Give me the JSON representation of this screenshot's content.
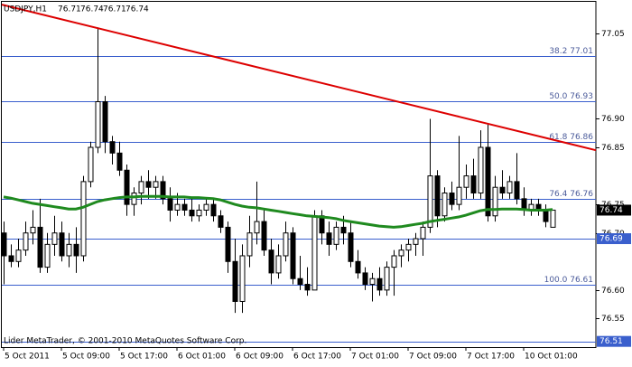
{
  "chart_data": {
    "type": "candlestick",
    "title": "USDJPY,H1",
    "footer": "Lider MetaTrader, © 2001-2010 MetaQuotes Software Corp.",
    "categories": [
      "5 Oct 2011",
      null,
      null,
      null,
      null,
      null,
      null,
      null,
      "5 Oct 09:00",
      null,
      null,
      null,
      null,
      null,
      null,
      null,
      "5 Oct 17:00",
      null,
      null,
      null,
      null,
      null,
      null,
      null,
      "6 Oct 01:00",
      null,
      null,
      null,
      null,
      null,
      null,
      null,
      "6 Oct 09:00",
      null,
      null,
      null,
      null,
      null,
      null,
      null,
      "6 Oct 17:00",
      null,
      null,
      null,
      null,
      null,
      null,
      null,
      "7 Oct 01:00",
      null,
      null,
      null,
      null,
      null,
      null,
      null,
      "7 Oct 09:00",
      null,
      null,
      null,
      null,
      null,
      null,
      null,
      "7 Oct 17:00",
      null,
      null,
      null,
      null,
      null,
      null,
      null,
      "10 Oct 01:00",
      null,
      null,
      null,
      null
    ],
    "open": [
      76.7,
      76.66,
      76.65,
      76.67,
      76.7,
      76.71,
      76.64,
      76.68,
      76.7,
      76.66,
      76.68,
      76.66,
      76.79,
      76.85,
      76.93,
      76.86,
      76.84,
      76.81,
      76.75,
      76.77,
      76.79,
      76.78,
      76.79,
      76.76,
      76.74,
      76.75,
      76.74,
      76.73,
      76.74,
      76.75,
      76.73,
      76.71,
      76.65,
      76.58,
      76.66,
      76.7,
      76.72,
      76.67,
      76.63,
      76.66,
      76.7,
      76.62,
      76.61,
      76.6,
      76.73,
      76.7,
      76.68,
      76.71,
      76.7,
      76.65,
      76.63,
      76.61,
      76.62,
      76.6,
      76.64,
      76.66,
      76.67,
      76.68,
      76.69,
      76.71,
      76.8,
      76.73,
      76.77,
      76.75,
      76.78,
      76.8,
      76.77,
      76.85,
      76.73,
      76.78,
      76.77,
      76.79,
      76.76,
      76.74,
      76.75,
      76.74,
      76.71
    ],
    "high": [
      76.72,
      76.68,
      76.69,
      76.72,
      76.74,
      76.76,
      76.7,
      76.73,
      76.72,
      76.7,
      76.71,
      76.8,
      76.86,
      77.06,
      76.94,
      76.87,
      76.86,
      76.82,
      76.78,
      76.8,
      76.81,
      76.8,
      76.8,
      76.78,
      76.77,
      76.76,
      76.76,
      76.75,
      76.76,
      76.76,
      76.74,
      76.72,
      76.69,
      76.68,
      76.73,
      76.79,
      76.74,
      76.69,
      76.68,
      76.72,
      76.71,
      76.66,
      76.64,
      76.74,
      76.74,
      76.72,
      76.72,
      76.73,
      76.72,
      76.67,
      76.64,
      76.63,
      76.64,
      76.65,
      76.67,
      76.68,
      76.69,
      76.7,
      76.72,
      76.9,
      76.81,
      76.78,
      76.79,
      76.87,
      76.82,
      76.83,
      76.88,
      76.89,
      76.8,
      76.81,
      76.8,
      76.84,
      76.78,
      76.76,
      76.76,
      76.75,
      76.74
    ],
    "low": [
      76.61,
      76.64,
      76.64,
      76.66,
      76.68,
      76.63,
      76.63,
      76.66,
      76.65,
      76.64,
      76.63,
      76.65,
      76.78,
      76.84,
      76.84,
      76.82,
      76.8,
      76.73,
      76.73,
      76.75,
      76.76,
      76.76,
      76.75,
      76.72,
      76.73,
      76.73,
      76.72,
      76.72,
      76.73,
      76.72,
      76.7,
      76.63,
      76.56,
      76.56,
      76.64,
      76.68,
      76.66,
      76.61,
      76.62,
      76.65,
      76.61,
      76.6,
      76.59,
      76.6,
      76.68,
      76.66,
      76.67,
      76.68,
      76.64,
      76.62,
      76.6,
      76.58,
      76.59,
      76.59,
      76.59,
      76.64,
      76.65,
      76.66,
      76.66,
      76.7,
      76.71,
      76.72,
      76.74,
      76.74,
      76.76,
      76.76,
      76.76,
      76.72,
      76.72,
      76.76,
      76.76,
      76.75,
      76.73,
      76.73,
      76.73,
      76.71,
      76.71
    ],
    "close": [
      76.66,
      76.65,
      76.67,
      76.7,
      76.71,
      76.64,
      76.68,
      76.7,
      76.66,
      76.68,
      76.66,
      76.79,
      76.85,
      76.93,
      76.86,
      76.84,
      76.81,
      76.75,
      76.77,
      76.79,
      76.78,
      76.79,
      76.76,
      76.74,
      76.75,
      76.74,
      76.73,
      76.74,
      76.75,
      76.73,
      76.71,
      76.65,
      76.58,
      76.66,
      76.7,
      76.72,
      76.67,
      76.63,
      76.66,
      76.7,
      76.62,
      76.61,
      76.6,
      76.73,
      76.7,
      76.68,
      76.71,
      76.7,
      76.65,
      76.63,
      76.61,
      76.62,
      76.6,
      76.64,
      76.66,
      76.67,
      76.68,
      76.69,
      76.71,
      76.8,
      76.73,
      76.77,
      76.75,
      76.78,
      76.8,
      76.77,
      76.85,
      76.73,
      76.78,
      76.77,
      76.79,
      76.76,
      76.74,
      76.75,
      76.74,
      76.72,
      76.74
    ],
    "up_color": "#ffffff",
    "down_color": "#000000",
    "wick_color": "#000000",
    "ma": {
      "color": "#1f8a1f",
      "values": [
        76.763,
        76.761,
        76.758,
        76.755,
        76.752,
        76.75,
        76.748,
        76.746,
        76.744,
        76.742,
        76.742,
        76.745,
        76.75,
        76.755,
        76.758,
        76.76,
        76.762,
        76.763,
        76.763,
        76.764,
        76.764,
        76.764,
        76.764,
        76.763,
        76.763,
        76.763,
        76.762,
        76.762,
        76.761,
        76.76,
        76.758,
        76.754,
        76.75,
        76.747,
        76.745,
        76.744,
        76.742,
        76.74,
        76.738,
        76.736,
        76.734,
        76.732,
        76.73,
        76.729,
        76.728,
        76.727,
        76.725,
        76.722,
        76.72,
        76.718,
        76.716,
        76.714,
        76.712,
        76.711,
        76.71,
        76.711,
        76.713,
        76.715,
        76.717,
        76.72,
        76.722,
        76.724,
        76.726,
        76.728,
        76.731,
        76.735,
        76.739,
        76.741,
        76.741,
        76.742,
        76.742,
        76.742,
        76.741,
        76.74,
        76.74,
        76.74,
        76.741
      ]
    },
    "trendline": {
      "color": "#dd0000",
      "values": [
        77.1,
        76.845
      ]
    },
    "levels_color": "#3a5fcd",
    "levels": [
      {
        "value": 77.01,
        "label": "38.2 77.01"
      },
      {
        "value": 76.93,
        "label": "50.0 76.93"
      },
      {
        "value": 76.86,
        "label": "61.8 76.86"
      },
      {
        "value": 76.76,
        "label": "76.4 76.76"
      },
      {
        "value": 76.69,
        "boxed": true
      },
      {
        "value": 76.61,
        "label": "100.0 76.61"
      },
      {
        "value": 76.51,
        "boxed": true
      }
    ],
    "ylim": [
      76.5,
      77.105
    ],
    "yticks": [
      {
        "value": 76.55,
        "label": "76.55"
      },
      {
        "value": 76.6,
        "label": "76.60"
      },
      {
        "value": 76.7,
        "label": "76.70"
      },
      {
        "value": 76.75,
        "label": "76.75"
      },
      {
        "value": 76.85,
        "label": "76.85"
      },
      {
        "value": 76.9,
        "label": "76.90"
      },
      {
        "value": 77.05,
        "label": "77.05"
      }
    ],
    "grid": false
  }
}
